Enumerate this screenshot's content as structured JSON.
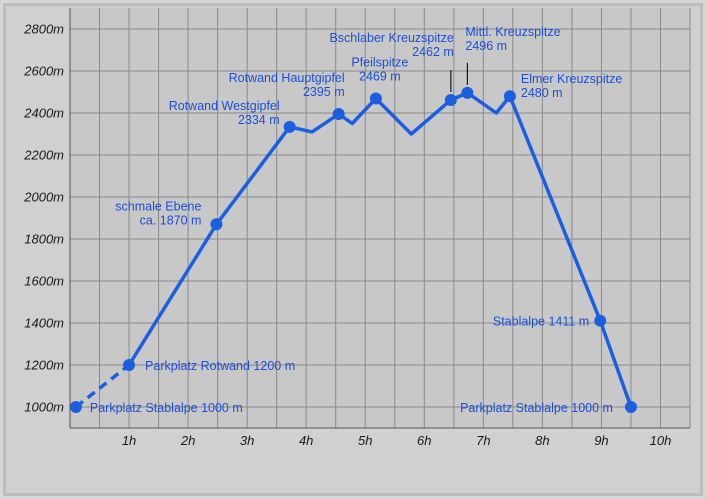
{
  "chart_data": {
    "type": "line",
    "ylim": [
      900,
      2900
    ],
    "xlim": [
      0,
      10.5
    ],
    "yticks": [
      {
        "value": 1000,
        "label": "1000m"
      },
      {
        "value": 1200,
        "label": "1200m"
      },
      {
        "value": 1400,
        "label": "1400m"
      },
      {
        "value": 1600,
        "label": "1600m"
      },
      {
        "value": 1800,
        "label": "1800m"
      },
      {
        "value": 2000,
        "label": "2000m"
      },
      {
        "value": 2200,
        "label": "2200m"
      },
      {
        "value": 2400,
        "label": "2400m"
      },
      {
        "value": 2600,
        "label": "2600m"
      },
      {
        "value": 2800,
        "label": "2800m"
      }
    ],
    "xticks": [
      {
        "value": 1,
        "label": "1h"
      },
      {
        "value": 2,
        "label": "2h"
      },
      {
        "value": 3,
        "label": "3h"
      },
      {
        "value": 4,
        "label": "4h"
      },
      {
        "value": 5,
        "label": "5h"
      },
      {
        "value": 6,
        "label": "6h"
      },
      {
        "value": 7,
        "label": "7h"
      },
      {
        "value": 8,
        "label": "8h"
      },
      {
        "value": 9,
        "label": "9h"
      },
      {
        "value": 10,
        "label": "10h"
      }
    ],
    "grid": true,
    "colors": {
      "line": "#1b5fe0",
      "label": "#1b4fd6",
      "plot_bg": "#c8c8c8",
      "grid": "#8a8a8a"
    },
    "dashed_segment": {
      "x": [
        0.1,
        1.0
      ],
      "y": [
        1000,
        1200
      ]
    },
    "series": [
      {
        "x": [
          1.0,
          2.48,
          3.72,
          4.1,
          4.55,
          4.78,
          5.18,
          5.78,
          6.45,
          6.73,
          7.22,
          7.45,
          8.98,
          9.5
        ],
        "y": [
          1200,
          1870,
          2334,
          2310,
          2395,
          2350,
          2469,
          2300,
          2462,
          2496,
          2400,
          2480,
          1411,
          1000
        ]
      }
    ],
    "markers": [
      {
        "x": 0.1,
        "y": 1000,
        "label": [
          "Parkplatz Stablalpe 1000 m"
        ],
        "anchor": "start"
      },
      {
        "x": 1.0,
        "y": 1200,
        "label": [
          "Parkplatz Rotwand 1200 m"
        ],
        "anchor": "start"
      },
      {
        "x": 2.48,
        "y": 1870,
        "label": [
          "schmale Ebene",
          "ca. 1870 m"
        ],
        "anchor": "end"
      },
      {
        "x": 3.72,
        "y": 2334,
        "label": [
          "Rotwand Westgipfel",
          "2334 m"
        ],
        "anchor": "end"
      },
      {
        "x": 4.55,
        "y": 2395,
        "label": [
          "Rotwand Hauptgipfel",
          "2395 m"
        ],
        "anchor": "end"
      },
      {
        "x": 5.18,
        "y": 2469,
        "label": [
          "Pfeilspitze",
          "2469 m"
        ],
        "anchor": "middle"
      },
      {
        "x": 6.45,
        "y": 2462,
        "label": [
          "Bschlaber Kreuzspitze",
          "2462 m"
        ],
        "anchor": "end"
      },
      {
        "x": 6.73,
        "y": 2496,
        "label": [
          "Mittl. Kreuzspitze",
          "2496 m"
        ],
        "anchor": "start"
      },
      {
        "x": 7.45,
        "y": 2480,
        "label": [
          "Elmer Kreuzspitze",
          "2480 m"
        ],
        "anchor": "start"
      },
      {
        "x": 8.98,
        "y": 1411,
        "label": [
          "Stablalpe 1411 m"
        ],
        "anchor": "end"
      },
      {
        "x": 9.5,
        "y": 1000,
        "label": [
          "Parkplatz Stablalpe 1000 m"
        ],
        "anchor": "end"
      }
    ]
  }
}
